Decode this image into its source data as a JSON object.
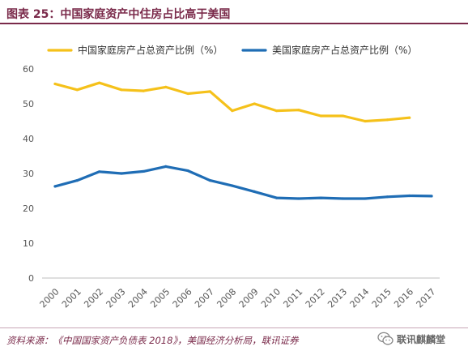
{
  "header": {
    "title": "图表 25：中国家庭资产中住房占比高于美国"
  },
  "footer": {
    "source": "资料来源：《中国国家资产负债表 2018》，美国经济分析局，联讯证券",
    "watermark": "联讯麒麟堂",
    "watermark_icon": "wechat-icon"
  },
  "chart_data": {
    "type": "line",
    "categories": [
      "2000",
      "2001",
      "2002",
      "2003",
      "2004",
      "2005",
      "2006",
      "2007",
      "2008",
      "2009",
      "2010",
      "2011",
      "2012",
      "2013",
      "2014",
      "2015",
      "2016",
      "2017"
    ],
    "series": [
      {
        "name": "中国家庭房产占总资产比例（%）",
        "color": "#f5c11a",
        "values": [
          55.7,
          54.0,
          56.0,
          54.0,
          53.7,
          54.8,
          52.9,
          53.5,
          48.0,
          50.0,
          48.0,
          48.2,
          46.5,
          46.5,
          45.0,
          45.4,
          46.0,
          null
        ]
      },
      {
        "name": "美国家庭房产占总资产比例（%）",
        "color": "#1f6db5",
        "values": [
          26.3,
          28.0,
          30.5,
          30.0,
          30.6,
          32.0,
          30.8,
          28.0,
          26.5,
          24.8,
          23.0,
          22.8,
          23.0,
          22.8,
          22.8,
          23.3,
          23.6,
          23.5
        ]
      }
    ],
    "ylim": [
      0,
      60
    ],
    "yticks": [
      0,
      10,
      20,
      30,
      40,
      50,
      60
    ],
    "grid": false,
    "legend_position": "top",
    "xlabel": "",
    "ylabel": ""
  }
}
